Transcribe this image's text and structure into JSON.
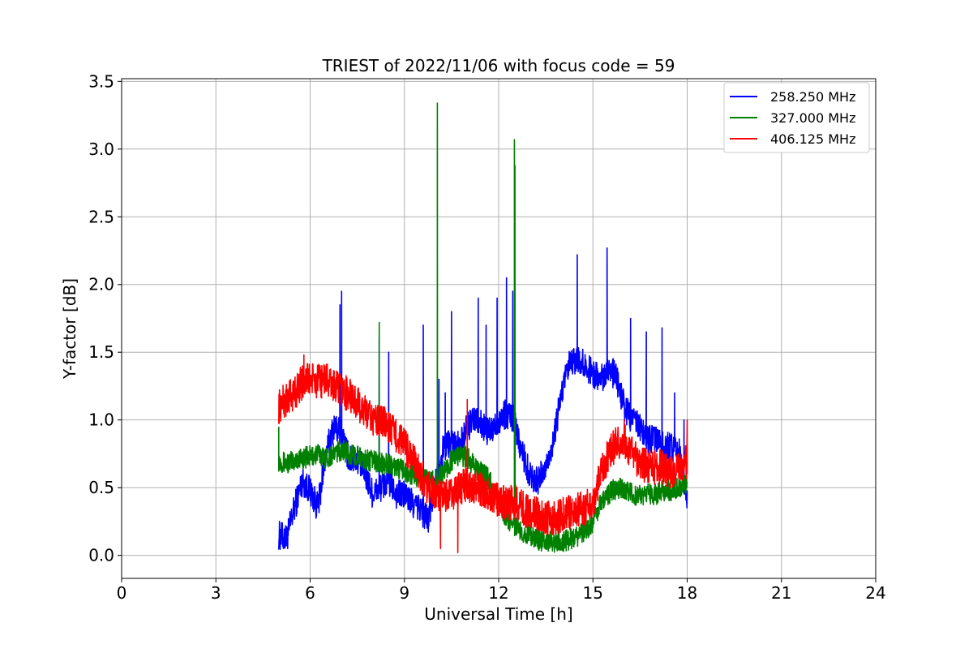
{
  "chart_data": {
    "type": "line",
    "title": "TRIEST of 2022/11/06 with focus code = 59",
    "xlabel": "Universal Time [h]",
    "ylabel": "Y-factor [dB]",
    "xlim": [
      0,
      24
    ],
    "ylim": [
      -0.17,
      3.52
    ],
    "xticks": [
      0,
      3,
      6,
      9,
      12,
      15,
      18,
      21,
      24
    ],
    "yticks": [
      0.0,
      0.5,
      1.0,
      1.5,
      2.0,
      2.5,
      3.0,
      3.5
    ],
    "xtick_labels": [
      "0",
      "3",
      "6",
      "9",
      "12",
      "15",
      "18",
      "21",
      "24"
    ],
    "ytick_labels": [
      "0.0",
      "0.5",
      "1.0",
      "1.5",
      "2.0",
      "2.5",
      "3.0",
      "3.5"
    ],
    "grid": true,
    "legend_position": "top-right",
    "series": [
      {
        "name": "258.250 MHz",
        "color": "#0000ff",
        "x": [
          5.0,
          5.25,
          5.5,
          5.75,
          6.0,
          6.25,
          6.5,
          6.75,
          7.0,
          7.25,
          7.5,
          7.75,
          8.0,
          8.25,
          8.5,
          8.75,
          9.0,
          9.25,
          9.5,
          9.75,
          10.0,
          10.25,
          10.5,
          10.75,
          11.0,
          11.25,
          11.5,
          11.75,
          12.0,
          12.25,
          12.5,
          12.75,
          13.0,
          13.25,
          13.5,
          13.75,
          14.0,
          14.25,
          14.5,
          14.75,
          15.0,
          15.25,
          15.5,
          15.75,
          16.0,
          16.25,
          16.5,
          16.75,
          17.0,
          17.25,
          17.5,
          17.75,
          18.0
        ],
        "y": [
          0.15,
          0.12,
          0.35,
          0.55,
          0.48,
          0.35,
          0.75,
          0.95,
          0.9,
          0.7,
          0.72,
          0.6,
          0.45,
          0.5,
          0.55,
          0.45,
          0.45,
          0.38,
          0.35,
          0.25,
          0.55,
          0.8,
          0.85,
          0.8,
          0.95,
          1.0,
          0.95,
          0.9,
          1.0,
          1.05,
          1.0,
          0.75,
          0.6,
          0.55,
          0.65,
          0.85,
          1.2,
          1.4,
          1.45,
          1.4,
          1.35,
          1.3,
          1.4,
          1.3,
          1.1,
          1.0,
          0.95,
          0.85,
          0.85,
          0.8,
          0.8,
          0.75,
          0.45
        ],
        "spikes": [
          [
            6.95,
            1.85
          ],
          [
            7.0,
            1.95
          ],
          [
            8.2,
            1.6
          ],
          [
            8.5,
            1.5
          ],
          [
            9.6,
            1.7
          ],
          [
            10.1,
            1.3
          ],
          [
            10.3,
            1.2
          ],
          [
            10.5,
            1.8
          ],
          [
            11.35,
            1.9
          ],
          [
            11.6,
            1.7
          ],
          [
            11.95,
            1.9
          ],
          [
            12.25,
            2.05
          ],
          [
            12.45,
            1.95
          ],
          [
            14.5,
            2.22
          ],
          [
            15.45,
            2.27
          ],
          [
            16.2,
            1.75
          ],
          [
            16.7,
            1.65
          ],
          [
            17.2,
            1.68
          ],
          [
            17.6,
            1.2
          ],
          [
            17.9,
            1.0
          ]
        ]
      },
      {
        "name": "327.000 MHz",
        "color": "#008000",
        "x": [
          5.0,
          5.25,
          5.5,
          5.75,
          6.0,
          6.25,
          6.5,
          6.75,
          7.0,
          7.25,
          7.5,
          7.75,
          8.0,
          8.25,
          8.5,
          8.75,
          9.0,
          9.25,
          9.5,
          9.75,
          10.0,
          10.25,
          10.5,
          10.75,
          11.0,
          11.25,
          11.5,
          11.75,
          12.0,
          12.25,
          12.5,
          12.75,
          13.0,
          13.25,
          13.5,
          13.75,
          14.0,
          14.25,
          14.5,
          14.75,
          15.0,
          15.25,
          15.5,
          15.75,
          16.0,
          16.25,
          16.5,
          16.75,
          17.0,
          17.25,
          17.5,
          17.75,
          18.0
        ],
        "y": [
          0.7,
          0.68,
          0.7,
          0.72,
          0.73,
          0.75,
          0.72,
          0.75,
          0.78,
          0.75,
          0.73,
          0.7,
          0.7,
          0.68,
          0.68,
          0.65,
          0.62,
          0.6,
          0.58,
          0.55,
          0.55,
          0.62,
          0.7,
          0.75,
          0.72,
          0.65,
          0.6,
          0.55,
          0.38,
          0.28,
          0.22,
          0.18,
          0.15,
          0.12,
          0.1,
          0.1,
          0.1,
          0.12,
          0.14,
          0.18,
          0.25,
          0.38,
          0.45,
          0.5,
          0.48,
          0.45,
          0.45,
          0.45,
          0.45,
          0.48,
          0.48,
          0.5,
          0.55
        ],
        "spikes": [
          [
            5.0,
            0.95
          ],
          [
            8.2,
            1.72
          ],
          [
            10.05,
            3.34
          ],
          [
            12.5,
            3.07
          ],
          [
            12.52,
            2.88
          ]
        ]
      },
      {
        "name": "406.125 MHz",
        "color": "#ff0000",
        "x": [
          5.0,
          5.25,
          5.5,
          5.75,
          6.0,
          6.25,
          6.5,
          6.75,
          7.0,
          7.25,
          7.5,
          7.75,
          8.0,
          8.25,
          8.5,
          8.75,
          9.0,
          9.25,
          9.5,
          9.75,
          10.0,
          10.25,
          10.5,
          10.75,
          11.0,
          11.25,
          11.5,
          11.75,
          12.0,
          12.25,
          12.5,
          12.75,
          13.0,
          13.25,
          13.5,
          13.75,
          14.0,
          14.25,
          14.5,
          14.75,
          15.0,
          15.25,
          15.5,
          15.75,
          16.0,
          16.25,
          16.5,
          16.75,
          17.0,
          17.25,
          17.5,
          17.75,
          18.0
        ],
        "y": [
          1.1,
          1.15,
          1.2,
          1.28,
          1.3,
          1.28,
          1.3,
          1.25,
          1.22,
          1.18,
          1.12,
          1.05,
          1.0,
          1.0,
          0.95,
          0.88,
          0.82,
          0.72,
          0.6,
          0.5,
          0.45,
          0.42,
          0.45,
          0.5,
          0.52,
          0.5,
          0.48,
          0.45,
          0.4,
          0.38,
          0.4,
          0.35,
          0.32,
          0.3,
          0.28,
          0.28,
          0.3,
          0.32,
          0.34,
          0.35,
          0.4,
          0.6,
          0.75,
          0.82,
          0.85,
          0.75,
          0.68,
          0.65,
          0.65,
          0.65,
          0.62,
          0.65,
          0.7
        ],
        "spikes": [
          [
            5.8,
            1.48
          ],
          [
            10.15,
            0.05
          ],
          [
            10.7,
            0.02
          ],
          [
            11.0,
            1.15
          ],
          [
            16.0,
            1.0
          ],
          [
            18.0,
            1.0
          ]
        ]
      }
    ]
  }
}
